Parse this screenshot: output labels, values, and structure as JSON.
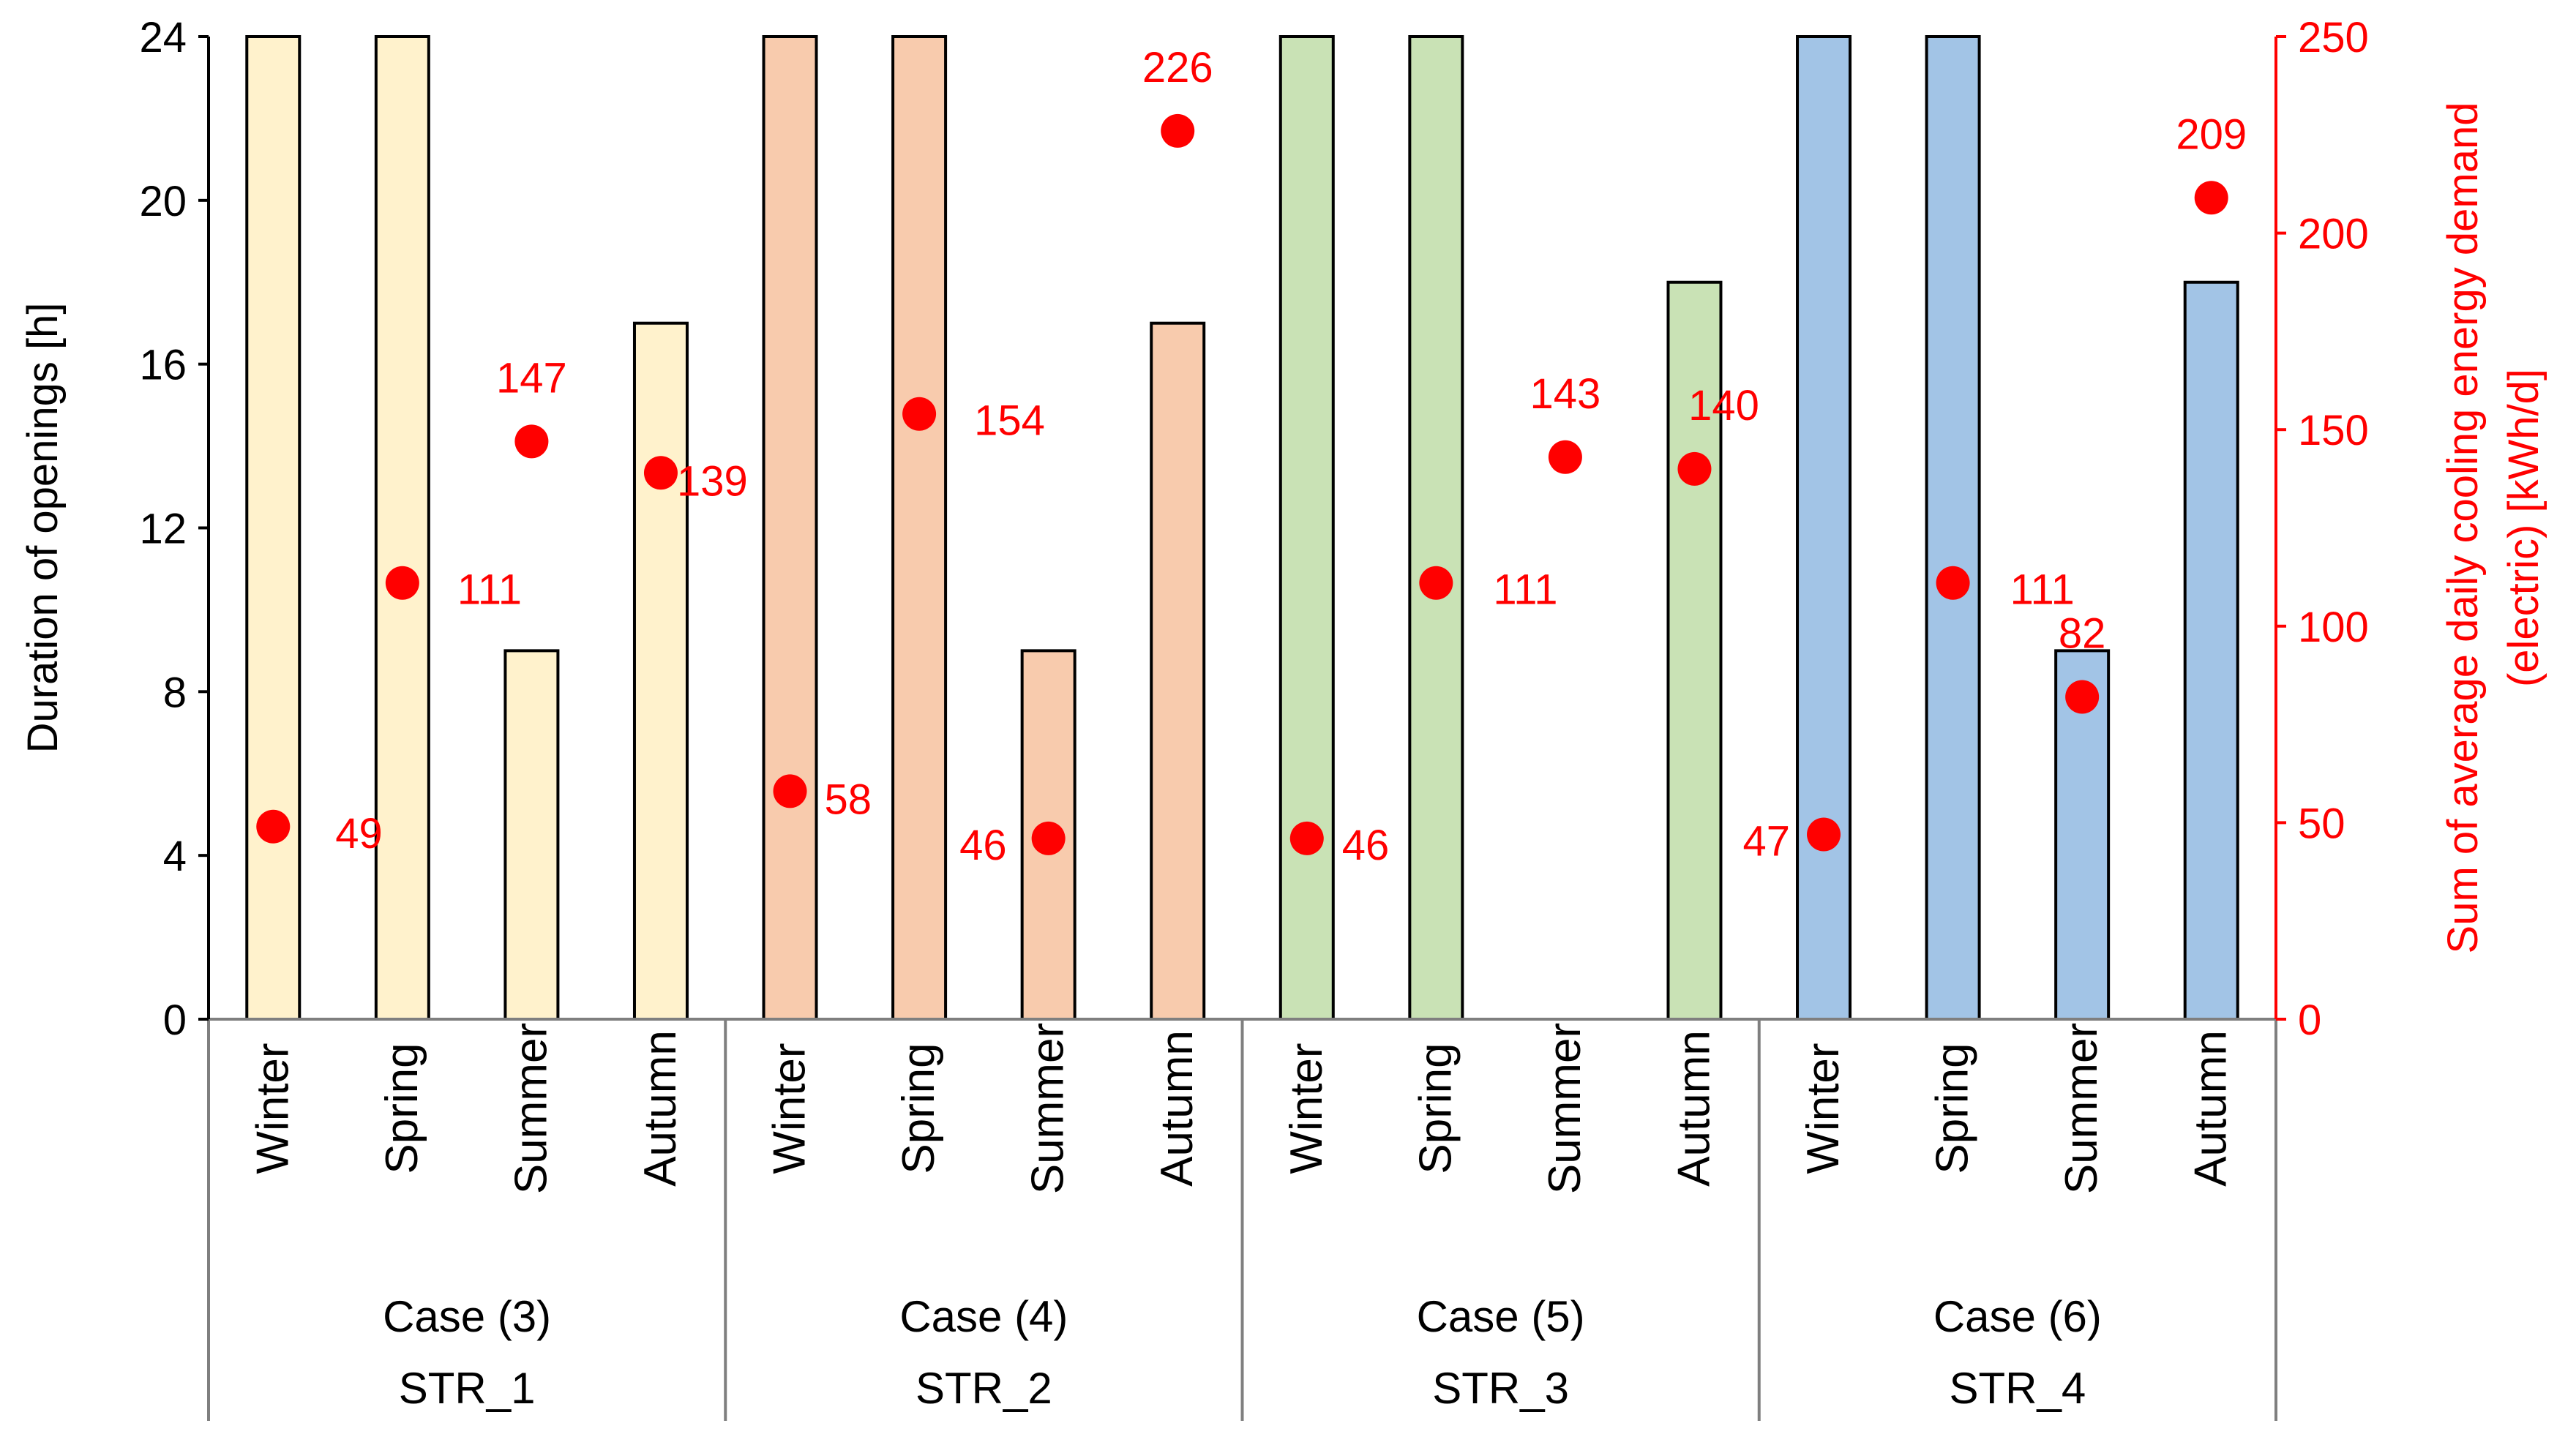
{
  "chart_data": {
    "type": "bar",
    "title": "",
    "ylabel_left": "Duration of openings  [h]",
    "ylabel_right_line1": "Sum of average daily cooling energy demand",
    "ylabel_right_line2": "(electric) [kWh/d]",
    "ylim_left": [
      0,
      24
    ],
    "yticks_left": [
      0,
      4,
      8,
      12,
      16,
      20,
      24
    ],
    "ylim_right": [
      0,
      250
    ],
    "yticks_right": [
      0,
      50,
      100,
      150,
      200,
      250
    ],
    "grid": false,
    "groups": [
      {
        "case": "Case (3)",
        "strategy": "STR_1",
        "color": "#FFF2CC",
        "seasons": [
          "Winter",
          "Spring",
          "Summer",
          "Autumn"
        ],
        "duration_h": [
          24,
          24,
          9,
          17
        ],
        "cooling_kwh_d": [
          49,
          111,
          147,
          139
        ]
      },
      {
        "case": "Case (4)",
        "strategy": "STR_2",
        "color": "#F8CBAD",
        "seasons": [
          "Winter",
          "Spring",
          "Summer",
          "Autumn"
        ],
        "duration_h": [
          24,
          24,
          9,
          17
        ],
        "cooling_kwh_d": [
          58,
          154,
          46,
          226
        ]
      },
      {
        "case": "Case (5)",
        "strategy": "STR_3",
        "color": "#C9E2B5",
        "seasons": [
          "Winter",
          "Spring",
          "Summer",
          "Autumn"
        ],
        "duration_h": [
          24,
          24,
          0,
          18
        ],
        "cooling_kwh_d": [
          46,
          111,
          143,
          140
        ]
      },
      {
        "case": "Case (6)",
        "strategy": "STR_4",
        "color": "#A2C4E6",
        "seasons": [
          "Winter",
          "Spring",
          "Summer",
          "Autumn"
        ],
        "duration_h": [
          24,
          24,
          9,
          18
        ],
        "cooling_kwh_d": [
          47,
          111,
          82,
          209
        ]
      }
    ],
    "point_color": "#FF0000",
    "right_axis_color": "#FF0000"
  }
}
